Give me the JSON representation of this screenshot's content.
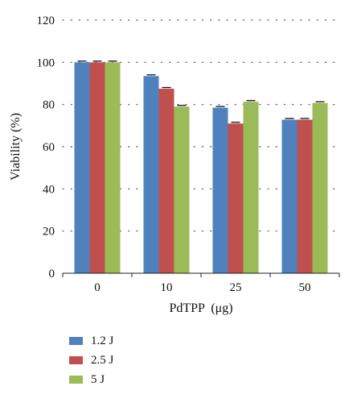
{
  "chart_data": {
    "type": "bar",
    "title": "",
    "xlabel": "PdTPP",
    "xlabel_unit": "(μg)",
    "ylabel": "Viability (%)",
    "categories": [
      "0",
      "10",
      "25",
      "50"
    ],
    "ylim": [
      0,
      120
    ],
    "yticks": [
      "0",
      "20",
      "40",
      "60",
      "80",
      "100",
      "120"
    ],
    "grid": "dotted-horizontal",
    "legend_position": "bottom-left",
    "series": [
      {
        "name": "1.2 J",
        "color": "#4f81bd",
        "values": [
          100,
          93.5,
          78.5,
          72.8
        ]
      },
      {
        "name": "2.5 J",
        "color": "#c0504d",
        "values": [
          100,
          87.5,
          71,
          72.8
        ]
      },
      {
        "name": "5 J",
        "color": "#9bbb59",
        "values": [
          100,
          79,
          81.3,
          80.7
        ]
      }
    ]
  }
}
